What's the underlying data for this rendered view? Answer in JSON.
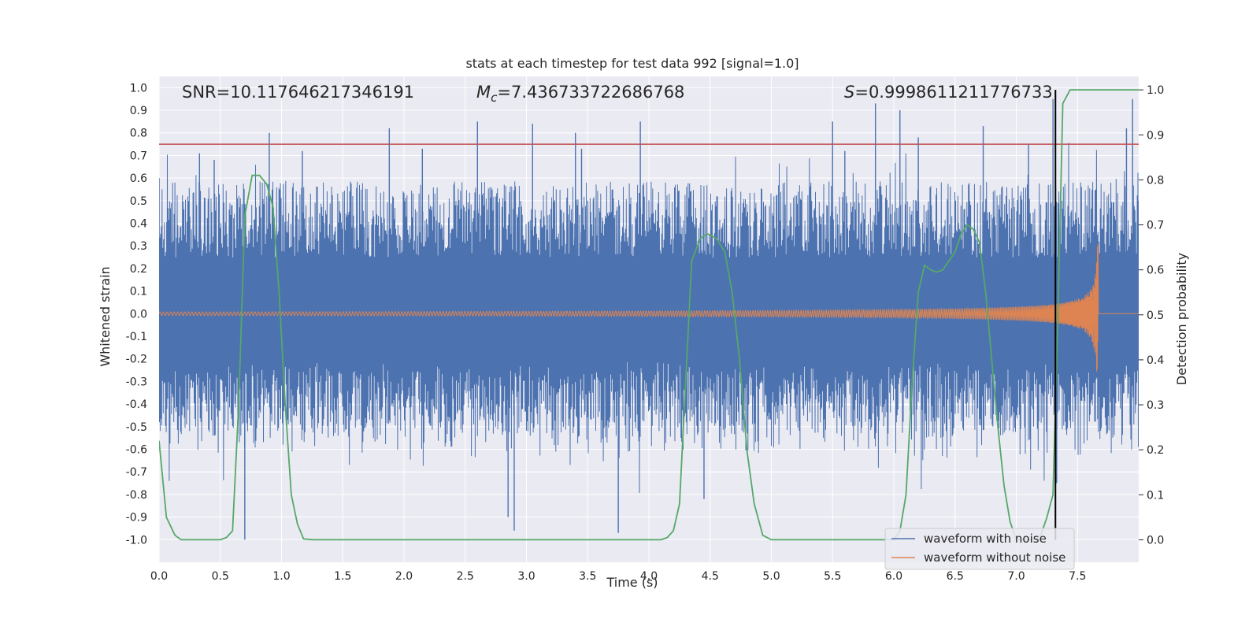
{
  "chart_data": {
    "type": "line",
    "title": "stats at each timestep for test data 992 [signal=1.0]",
    "xlabel": "Time (s)",
    "ylabel": "Whitened strain",
    "ylabel_right": "Detection probability",
    "xlim": [
      0.0,
      8.0
    ],
    "ylim": [
      -1.1,
      1.05
    ],
    "ylim_right": [
      -0.05,
      1.03
    ],
    "x_ticks": [
      "0.0",
      "0.5",
      "1.0",
      "1.5",
      "2.0",
      "2.5",
      "3.0",
      "3.5",
      "4.0",
      "4.5",
      "5.0",
      "5.5",
      "6.0",
      "6.5",
      "7.0",
      "7.5"
    ],
    "y_ticks": [
      "1.0",
      "0.9",
      "0.8",
      "0.7",
      "0.6",
      "0.5",
      "0.4",
      "0.3",
      "0.2",
      "0.1",
      "0.0",
      "-0.1",
      "-0.2",
      "-0.3",
      "-0.4",
      "-0.5",
      "-0.6",
      "-0.7",
      "-0.8",
      "-0.9",
      "-1.0"
    ],
    "y_ticks_right": [
      "1.0",
      "0.9",
      "0.8",
      "0.7",
      "0.6",
      "0.5",
      "0.4",
      "0.3",
      "0.2",
      "0.1",
      "0.0"
    ],
    "grid": true,
    "legend_position": "lower-right",
    "annotations": {
      "snr": "SNR=10.117646217346191",
      "mc_symbol": "M",
      "mc_sub": "c",
      "mc_value": "=7.436733722686768",
      "s_symbol": "S",
      "s_value": "=0.9998611211776733"
    },
    "threshold": {
      "y": 0.75,
      "color": "#c44e52"
    },
    "detection_time": 7.32,
    "series": [
      {
        "name": "waveform with noise",
        "color": "#4c72b0",
        "kind": "noise",
        "envelope_typical": 0.45,
        "spikes": [
          [
            0.0,
            0.6
          ],
          [
            0.33,
            0.71
          ],
          [
            0.45,
            0.68
          ],
          [
            0.7,
            -1.0
          ],
          [
            0.9,
            0.8
          ],
          [
            1.17,
            0.72
          ],
          [
            1.88,
            0.82
          ],
          [
            2.15,
            0.73
          ],
          [
            2.6,
            0.85
          ],
          [
            2.85,
            -0.9
          ],
          [
            2.9,
            -0.96
          ],
          [
            3.05,
            0.84
          ],
          [
            3.4,
            0.8
          ],
          [
            3.45,
            0.73
          ],
          [
            3.75,
            -0.97
          ],
          [
            3.93,
            0.85
          ],
          [
            4.45,
            -0.82
          ],
          [
            5.5,
            0.85
          ],
          [
            5.6,
            0.72
          ],
          [
            5.85,
            0.93
          ],
          [
            6.05,
            0.9
          ],
          [
            6.2,
            0.78
          ],
          [
            6.73,
            0.83
          ],
          [
            7.1,
            0.75
          ],
          [
            7.3,
            0.95
          ],
          [
            7.33,
            -0.75
          ],
          [
            7.9,
            0.82
          ],
          [
            7.95,
            0.95
          ]
        ]
      },
      {
        "name": "waveform without noise",
        "color": "#dd8452",
        "kind": "chirp",
        "merger_time": 7.67,
        "peak_amplitude": 0.35,
        "post_merger_value": 0.0
      },
      {
        "name": "detection probability",
        "color": "#55a868",
        "axis": "right",
        "x": [
          0.0,
          0.06,
          0.13,
          0.18,
          0.3,
          0.5,
          0.55,
          0.6,
          0.65,
          0.7,
          0.76,
          0.82,
          0.88,
          0.93,
          0.98,
          1.03,
          1.08,
          1.13,
          1.18,
          1.25,
          4.0,
          4.1,
          4.15,
          4.2,
          4.25,
          4.3,
          4.35,
          4.42,
          4.48,
          4.55,
          4.62,
          4.68,
          4.74,
          4.8,
          4.86,
          4.93,
          5.0,
          6.0,
          6.05,
          6.1,
          6.15,
          6.2,
          6.25,
          6.3,
          6.35,
          6.4,
          6.45,
          6.5,
          6.55,
          6.6,
          6.65,
          6.7,
          6.75,
          6.8,
          6.85,
          6.9,
          6.95,
          7.0,
          7.05,
          7.1,
          7.15,
          7.2,
          7.25,
          7.3,
          7.34,
          7.38,
          7.44,
          7.5,
          8.0
        ],
        "y": [
          0.22,
          0.05,
          0.01,
          0.0,
          0.0,
          0.0,
          0.005,
          0.02,
          0.3,
          0.72,
          0.81,
          0.81,
          0.79,
          0.74,
          0.55,
          0.3,
          0.1,
          0.035,
          0.002,
          0.0,
          0.0,
          0.0,
          0.005,
          0.02,
          0.08,
          0.35,
          0.62,
          0.67,
          0.68,
          0.67,
          0.64,
          0.55,
          0.4,
          0.2,
          0.08,
          0.01,
          0.0,
          0.0,
          0.02,
          0.1,
          0.35,
          0.55,
          0.61,
          0.6,
          0.595,
          0.6,
          0.62,
          0.64,
          0.68,
          0.7,
          0.69,
          0.66,
          0.55,
          0.4,
          0.25,
          0.12,
          0.04,
          0.0,
          0.0,
          0.0,
          0.0,
          0.01,
          0.05,
          0.1,
          0.5,
          0.97,
          1.0,
          1.0,
          1.0
        ]
      }
    ]
  }
}
